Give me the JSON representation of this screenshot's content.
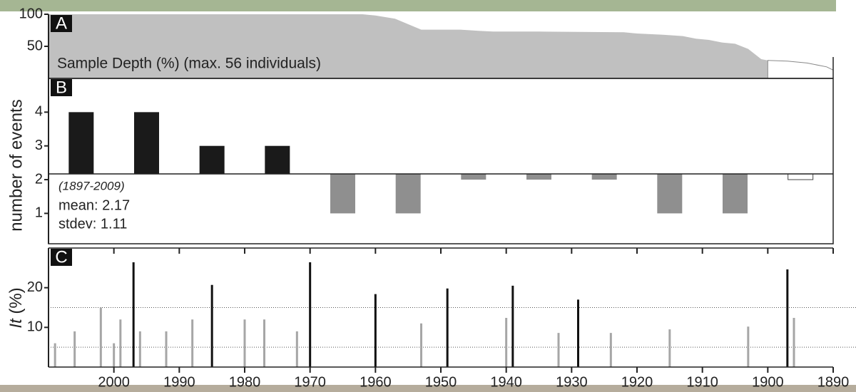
{
  "chart_data": [
    {
      "type": "area",
      "label": "A",
      "annotation": "Sample Depth (%) (max. 56 individuals)",
      "xlim": [
        2010,
        1890
      ],
      "ylim": [
        0,
        100
      ],
      "yticks": [
        50,
        100
      ],
      "series": [
        {
          "color": "#c0c0c0",
          "x": [
            2010,
            1962,
            1960,
            1957,
            1953,
            1947,
            1944,
            1942,
            1935,
            1922,
            1920,
            1916,
            1913,
            1911,
            1909,
            1907,
            1905,
            1903,
            1901,
            1900
          ],
          "values": [
            100,
            100,
            98,
            93,
            76,
            76,
            74,
            73,
            73,
            72,
            70,
            68,
            66,
            62,
            60,
            56,
            54,
            46,
            30,
            28
          ]
        },
        {
          "color": "#ffffff",
          "x": [
            1900,
            1897,
            1894,
            1891,
            1890
          ],
          "values": [
            28,
            27,
            24,
            18,
            13
          ]
        }
      ]
    },
    {
      "type": "bar",
      "label": "B",
      "ylabel": "number of events",
      "xlim": [
        2010,
        1890
      ],
      "ylim": [
        0.1,
        5
      ],
      "yticks": [
        1,
        2,
        3,
        4
      ],
      "x": [
        2005,
        1995,
        1985,
        1975,
        1965,
        1955,
        1945,
        1935,
        1925,
        1915,
        1905,
        1895
      ],
      "values": [
        4,
        4,
        3,
        3,
        1,
        1,
        2,
        2,
        2,
        1,
        1,
        2
      ],
      "colors": [
        "#1a1a1a",
        "#1a1a1a",
        "#1a1a1a",
        "#1a1a1a",
        "#8f8f8f",
        "#8f8f8f",
        "#8f8f8f",
        "#8f8f8f",
        "#8f8f8f",
        "#8f8f8f",
        "#8f8f8f",
        "#ffffff"
      ],
      "mean": {
        "value": 2.17,
        "label": "mean: 2.17"
      },
      "stdev": "stdev: 1.11",
      "period": "(1897-2009)"
    },
    {
      "type": "stick",
      "label": "C",
      "ylabel": [
        "It",
        "(%)"
      ],
      "xlim": [
        2010,
        1890
      ],
      "ylim": [
        0,
        30
      ],
      "yticks": [
        10,
        20
      ],
      "xticks": [
        2000,
        1990,
        1980,
        1970,
        1960,
        1950,
        1940,
        1930,
        1920,
        1910,
        1900,
        1890
      ],
      "reference_lines": [
        5,
        15
      ],
      "series": [
        {
          "color": "#111111",
          "x": [
            1997,
            1985,
            1970,
            1960,
            1949,
            1939,
            1929,
            1897
          ],
          "values": [
            26.4,
            20.7,
            26.4,
            18.4,
            19.8,
            20.5,
            17,
            24.6
          ]
        },
        {
          "color": "#a6a6a6",
          "x": [
            2009,
            2006,
            2002,
            2000,
            1999,
            1996,
            1992,
            1988,
            1980,
            1977,
            1972,
            1953,
            1940,
            1932,
            1924,
            1915,
            1903,
            1896
          ],
          "values": [
            6,
            9,
            15,
            6,
            12,
            9,
            9,
            12,
            12,
            12,
            9,
            11,
            12.4,
            8.6,
            8.6,
            9.5,
            10.2,
            12.4
          ]
        }
      ]
    }
  ]
}
